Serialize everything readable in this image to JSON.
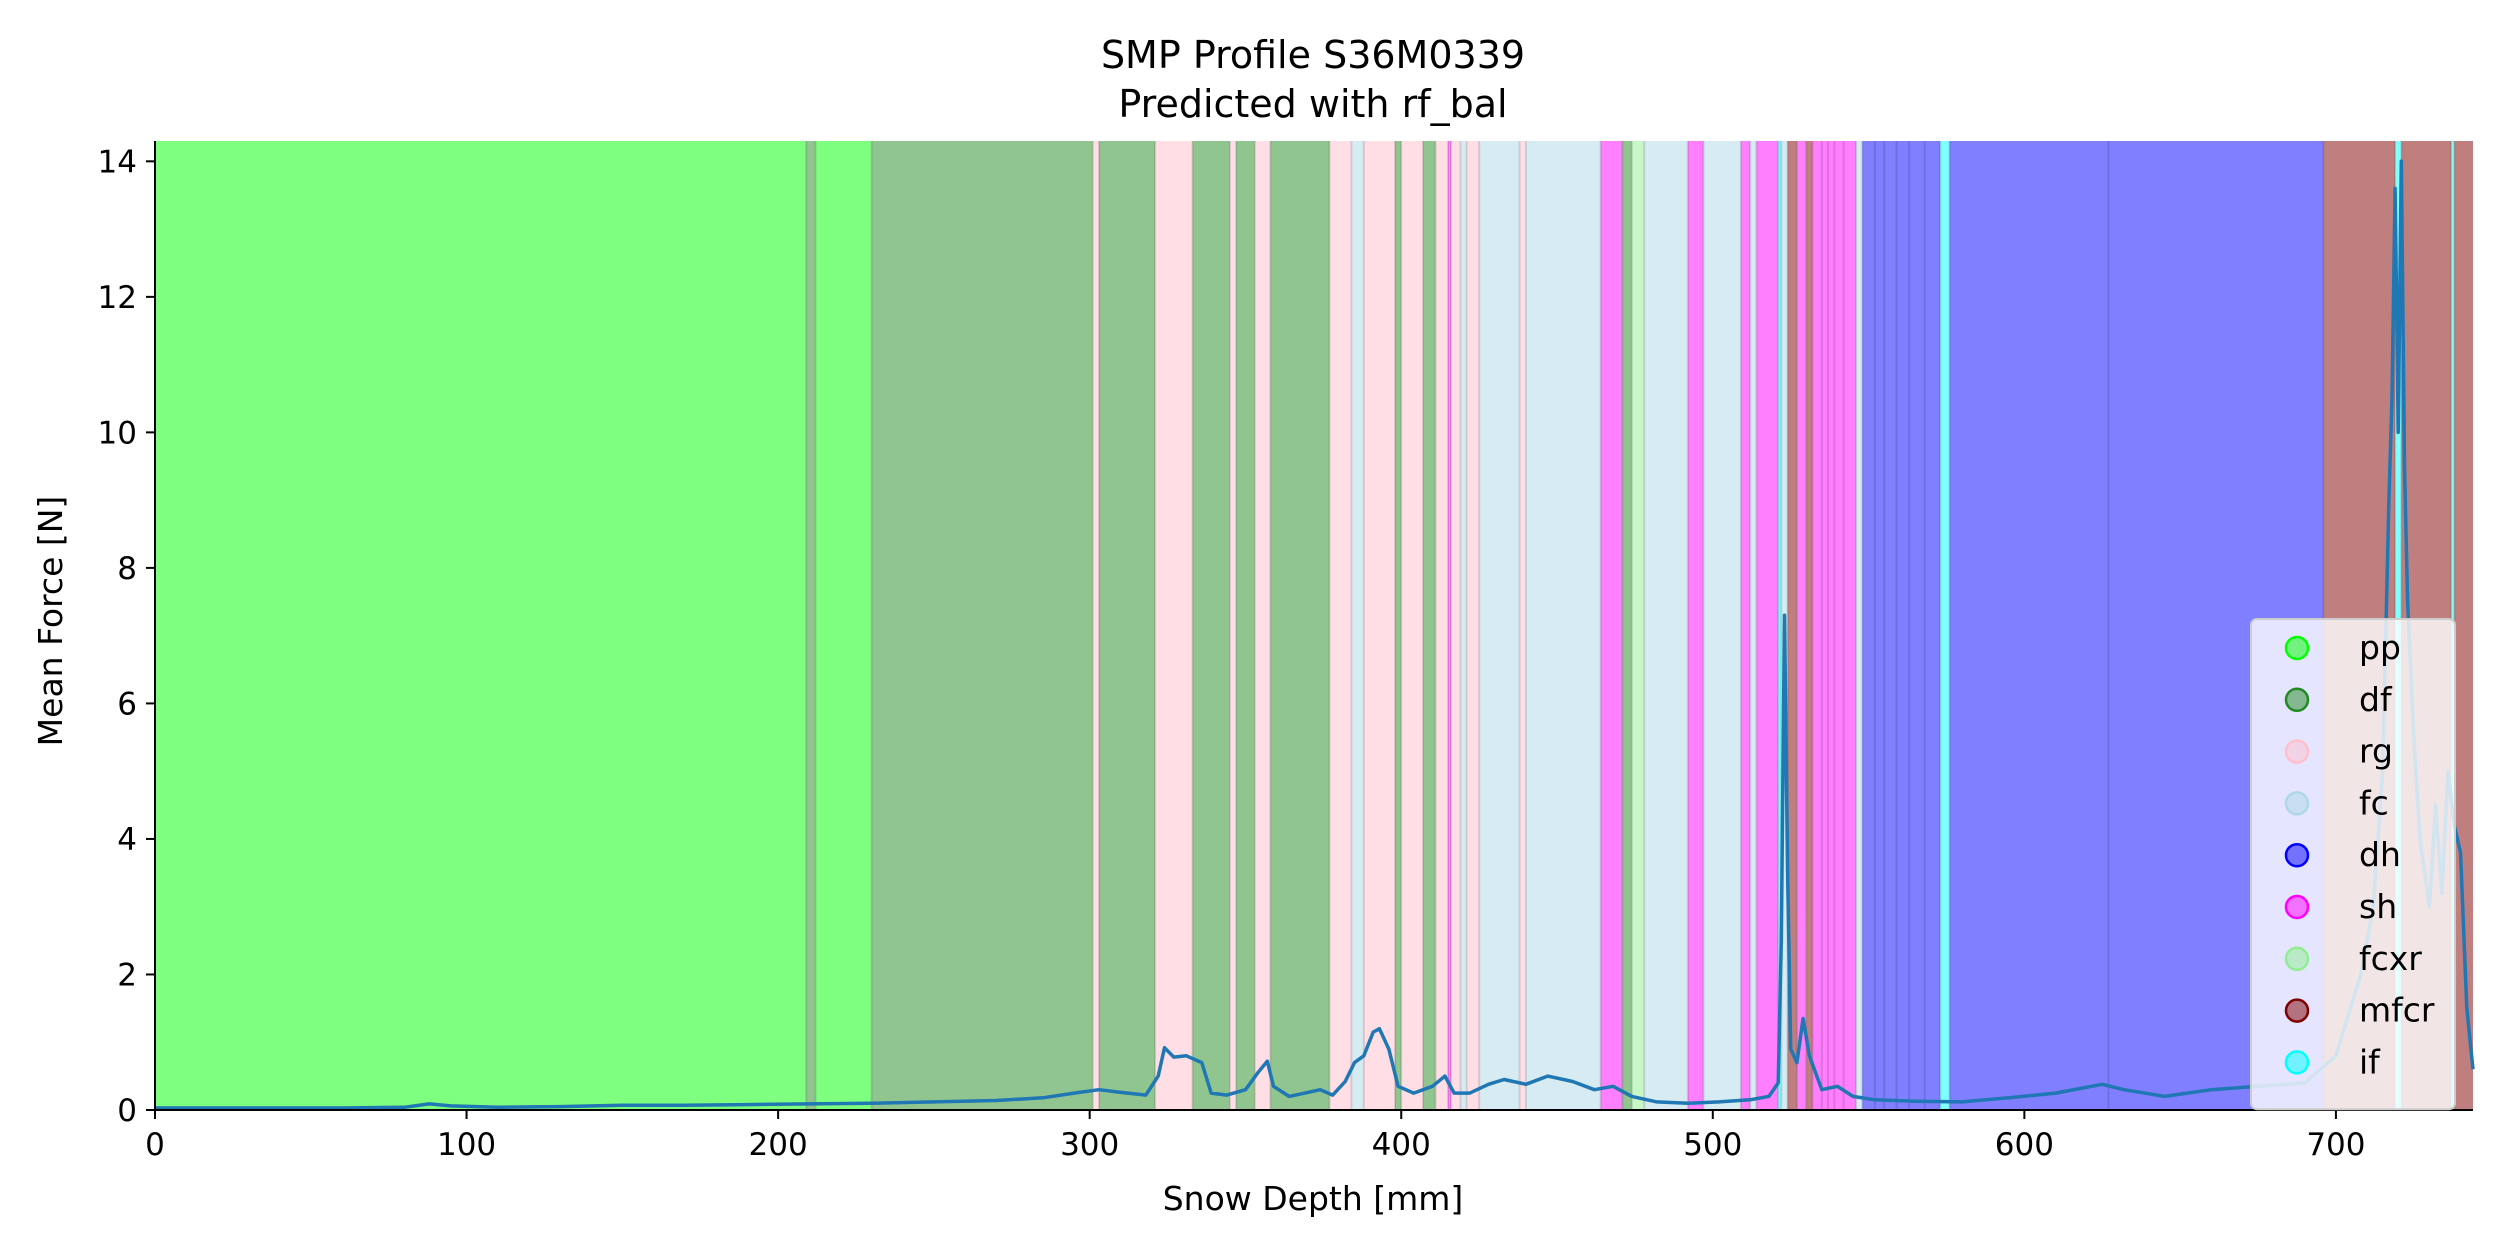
{
  "chart_data": {
    "type": "line",
    "title": "SMP Profile S36M0339",
    "subtitle": "Predicted with rf_bal",
    "xlabel": "Snow Depth [mm]",
    "ylabel": "Mean Force [N]",
    "xlim": [
      0,
      744
    ],
    "ylim": [
      0,
      14.3
    ],
    "xticks": [
      0,
      100,
      200,
      300,
      400,
      500,
      600,
      700
    ],
    "yticks": [
      0,
      2,
      4,
      6,
      8,
      10,
      12,
      14
    ],
    "grid": false,
    "legend_position": "lower-right",
    "legend": [
      {
        "key": "pp",
        "label": "pp"
      },
      {
        "key": "df",
        "label": "df"
      },
      {
        "key": "rg",
        "label": "rg"
      },
      {
        "key": "fc",
        "label": "fc"
      },
      {
        "key": "dh",
        "label": "dh"
      },
      {
        "key": "sh",
        "label": "sh"
      },
      {
        "key": "fcxr",
        "label": "fcxr"
      },
      {
        "key": "mfcr",
        "label": "mfcr"
      },
      {
        "key": "if",
        "label": "if"
      }
    ],
    "class_colors": {
      "pp": "#00ff00",
      "df": "#228b22",
      "rg": "#ffc0cb",
      "fc": "#add8e6",
      "dh": "#0000ff",
      "sh": "#ff00ff",
      "fcxr": "#90ee90",
      "mfcr": "#800000",
      "if": "#00ffff"
    },
    "segments": [
      [
        "pp",
        0,
        209
      ],
      [
        "df",
        209,
        212
      ],
      [
        "pp",
        212,
        230
      ],
      [
        "df",
        230,
        301
      ],
      [
        "rg",
        301,
        303
      ],
      [
        "df",
        303,
        321
      ],
      [
        "rg",
        321,
        333
      ],
      [
        "df",
        333,
        345
      ],
      [
        "rg",
        345,
        347
      ],
      [
        "df",
        347,
        353
      ],
      [
        "rg",
        353,
        358
      ],
      [
        "df",
        358,
        377
      ],
      [
        "rg",
        377,
        384
      ],
      [
        "fc",
        384,
        388
      ],
      [
        "rg",
        388,
        398
      ],
      [
        "df",
        398,
        400
      ],
      [
        "rg",
        400,
        407
      ],
      [
        "df",
        407,
        411
      ],
      [
        "rg",
        411,
        415
      ],
      [
        "sh",
        415,
        416
      ],
      [
        "rg",
        416,
        419
      ],
      [
        "fc",
        419,
        421
      ],
      [
        "rg",
        421,
        425
      ],
      [
        "fc",
        425,
        438
      ],
      [
        "rg",
        438,
        440
      ],
      [
        "fc",
        440,
        464
      ],
      [
        "sh",
        464,
        471
      ],
      [
        "df",
        471,
        474
      ],
      [
        "fcxr",
        474,
        478
      ],
      [
        "fc",
        478,
        492
      ],
      [
        "sh",
        492,
        497
      ],
      [
        "fc",
        497,
        509
      ],
      [
        "sh",
        509,
        512
      ],
      [
        "fc",
        512,
        514
      ],
      [
        "sh",
        514,
        521
      ],
      [
        "if",
        521,
        522
      ],
      [
        "fc",
        522,
        524
      ],
      [
        "mfcr",
        524,
        527
      ],
      [
        "sh",
        527,
        530
      ],
      [
        "mfcr",
        530,
        532
      ],
      [
        "sh",
        532,
        546
      ],
      [
        "fc",
        546,
        548
      ],
      [
        "dh",
        548,
        573
      ],
      [
        "if",
        573,
        576
      ],
      [
        "dh",
        576,
        696
      ],
      [
        "mfcr",
        696,
        719
      ],
      [
        "if",
        719,
        721
      ],
      [
        "mfcr",
        721,
        737
      ],
      [
        "if",
        737,
        738
      ],
      [
        "mfcr",
        738,
        744
      ]
    ],
    "boundaries": [
      209,
      212,
      230,
      301,
      303,
      321,
      333,
      345,
      347,
      353,
      358,
      377,
      384,
      388,
      398,
      400,
      407,
      411,
      415,
      416,
      419,
      421,
      425,
      438,
      440,
      464,
      471,
      474,
      478,
      492,
      497,
      509,
      512,
      514,
      521,
      522,
      524,
      527,
      530,
      532,
      535,
      537,
      539,
      542,
      546,
      548,
      552,
      555,
      559,
      563,
      568,
      573,
      576,
      627,
      696,
      719,
      721,
      737,
      738
    ],
    "series": [
      {
        "values": [
          [
            0,
            0.03
          ],
          [
            20,
            0.03
          ],
          [
            40,
            0.03
          ],
          [
            60,
            0.03
          ],
          [
            80,
            0.04
          ],
          [
            88,
            0.09
          ],
          [
            95,
            0.06
          ],
          [
            110,
            0.04
          ],
          [
            130,
            0.05
          ],
          [
            150,
            0.07
          ],
          [
            170,
            0.07
          ],
          [
            190,
            0.08
          ],
          [
            210,
            0.09
          ],
          [
            230,
            0.1
          ],
          [
            250,
            0.12
          ],
          [
            270,
            0.14
          ],
          [
            285,
            0.18
          ],
          [
            295,
            0.25
          ],
          [
            303,
            0.3
          ],
          [
            310,
            0.26
          ],
          [
            318,
            0.22
          ],
          [
            322,
            0.5
          ],
          [
            324,
            0.92
          ],
          [
            327,
            0.78
          ],
          [
            331,
            0.8
          ],
          [
            336,
            0.7
          ],
          [
            339,
            0.25
          ],
          [
            344,
            0.22
          ],
          [
            350,
            0.3
          ],
          [
            354,
            0.55
          ],
          [
            357,
            0.72
          ],
          [
            359,
            0.35
          ],
          [
            364,
            0.2
          ],
          [
            370,
            0.26
          ],
          [
            374,
            0.3
          ],
          [
            378,
            0.22
          ],
          [
            382,
            0.42
          ],
          [
            385,
            0.7
          ],
          [
            388,
            0.8
          ],
          [
            391,
            1.15
          ],
          [
            393,
            1.2
          ],
          [
            396,
            0.9
          ],
          [
            399,
            0.35
          ],
          [
            404,
            0.25
          ],
          [
            410,
            0.35
          ],
          [
            414,
            0.5
          ],
          [
            417,
            0.25
          ],
          [
            422,
            0.25
          ],
          [
            428,
            0.38
          ],
          [
            433,
            0.45
          ],
          [
            440,
            0.38
          ],
          [
            447,
            0.5
          ],
          [
            455,
            0.42
          ],
          [
            462,
            0.3
          ],
          [
            468,
            0.35
          ],
          [
            474,
            0.2
          ],
          [
            482,
            0.12
          ],
          [
            492,
            0.1
          ],
          [
            502,
            0.12
          ],
          [
            512,
            0.15
          ],
          [
            518,
            0.2
          ],
          [
            521,
            0.4
          ],
          [
            522,
            2.5
          ],
          [
            523,
            7.3
          ],
          [
            524,
            3.5
          ],
          [
            525,
            0.9
          ],
          [
            527,
            0.7
          ],
          [
            529,
            1.35
          ],
          [
            531,
            0.8
          ],
          [
            535,
            0.3
          ],
          [
            540,
            0.35
          ],
          [
            545,
            0.2
          ],
          [
            552,
            0.15
          ],
          [
            565,
            0.13
          ],
          [
            580,
            0.12
          ],
          [
            595,
            0.18
          ],
          [
            610,
            0.25
          ],
          [
            625,
            0.38
          ],
          [
            632,
            0.3
          ],
          [
            645,
            0.2
          ],
          [
            660,
            0.3
          ],
          [
            675,
            0.35
          ],
          [
            690,
            0.4
          ],
          [
            700,
            0.8
          ],
          [
            708,
            2.0
          ],
          [
            712,
            3.0
          ],
          [
            715,
            5.0
          ],
          [
            717,
            9.0
          ],
          [
            718,
            10.5
          ],
          [
            719,
            13.6
          ],
          [
            720,
            10.0
          ],
          [
            721,
            14.0
          ],
          [
            722,
            9.5
          ],
          [
            723,
            7.5
          ],
          [
            725,
            5.5
          ],
          [
            727,
            4.0
          ],
          [
            730,
            3.0
          ],
          [
            732,
            4.5
          ],
          [
            734,
            3.2
          ],
          [
            736,
            5.0
          ],
          [
            738,
            4.2
          ],
          [
            740,
            3.8
          ],
          [
            742,
            1.5
          ],
          [
            744,
            0.6
          ]
        ]
      }
    ]
  }
}
